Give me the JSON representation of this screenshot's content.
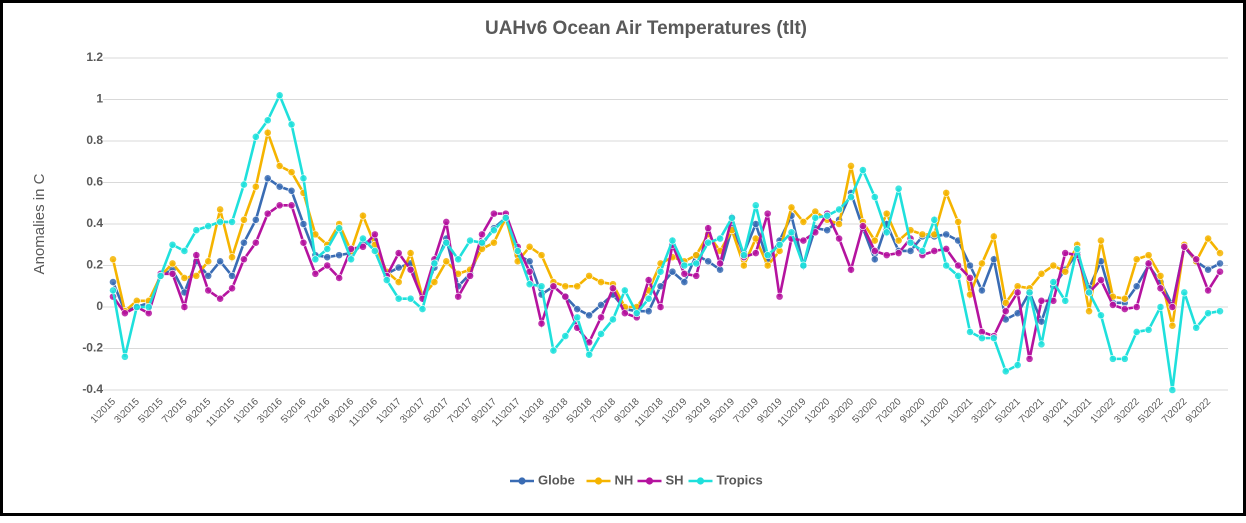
{
  "chart_data": {
    "type": "line",
    "title": "UAHv6 Ocean Air Temperatures (tlt)",
    "y_label": "Anomalies in C",
    "categories": [
      "1\\2015",
      null,
      "3\\2015",
      null,
      "5\\2015",
      null,
      "7\\2015",
      null,
      "9\\2015",
      null,
      "11\\2015",
      null,
      "1\\2016",
      null,
      "3\\2016",
      null,
      "5\\2016",
      null,
      "7\\2016",
      null,
      "9\\2016",
      null,
      "11\\2016",
      null,
      "1\\2017",
      null,
      "3\\2017",
      null,
      "5\\2017",
      null,
      "7\\2017",
      null,
      "9\\2017",
      null,
      "11\\2017",
      null,
      "1\\2018",
      null,
      "3\\2018",
      null,
      "5\\2018",
      null,
      "7\\2018",
      null,
      "9\\2018",
      null,
      "11\\2018",
      null,
      "1\\2019",
      null,
      "3\\2019",
      null,
      "5\\2019",
      null,
      "7\\2019",
      null,
      "9\\2019",
      null,
      "11\\2019",
      null,
      "1\\2020",
      null,
      "3\\2020",
      null,
      "5\\2020",
      null,
      "7\\2020",
      null,
      "9\\2020",
      null,
      "11\\2020",
      null,
      "1\\2021",
      null,
      "3\\2021",
      null,
      "5\\2021",
      null,
      "7\\2021",
      null,
      "9\\2021",
      null,
      "11\\2021",
      null,
      "1\\2022",
      null,
      "3\\2022",
      null,
      "5\\2022",
      null,
      "7\\2022",
      null,
      "9\\2022",
      null
    ],
    "series": [
      {
        "name": "Globe",
        "color": "#3a6cb4",
        "values": [
          0.12,
          -0.02,
          0.0,
          0.02,
          0.15,
          0.18,
          0.07,
          0.22,
          0.15,
          0.22,
          0.15,
          0.31,
          0.42,
          0.62,
          0.58,
          0.56,
          0.4,
          0.25,
          0.24,
          0.25,
          0.26,
          0.3,
          0.32,
          0.16,
          0.19,
          0.21,
          0.05,
          0.19,
          0.33,
          0.1,
          0.16,
          0.3,
          0.38,
          0.43,
          0.25,
          0.22,
          0.06,
          0.1,
          0.05,
          -0.01,
          -0.04,
          0.01,
          0.06,
          -0.01,
          -0.02,
          -0.02,
          0.1,
          0.17,
          0.12,
          0.25,
          0.22,
          0.18,
          0.38,
          0.26,
          0.4,
          0.22,
          0.32,
          0.44,
          0.2,
          0.38,
          0.37,
          0.42,
          0.55,
          0.38,
          0.23,
          0.4,
          0.27,
          0.27,
          0.34,
          0.34,
          0.35,
          0.32,
          0.2,
          0.08,
          0.23,
          -0.06,
          -0.03,
          0.07,
          -0.07,
          0.1,
          0.18,
          0.26,
          0.09,
          0.22,
          0.02,
          0.02,
          0.1,
          0.2,
          0.12,
          0.01,
          0.29,
          0.22,
          0.18,
          0.21
        ]
      },
      {
        "name": "NH",
        "color": "#f5b400",
        "values": [
          0.23,
          -0.02,
          0.03,
          0.03,
          0.15,
          0.21,
          0.14,
          0.15,
          0.22,
          0.47,
          0.24,
          0.42,
          0.58,
          0.84,
          0.68,
          0.65,
          0.55,
          0.35,
          0.3,
          0.4,
          0.27,
          0.44,
          0.3,
          0.17,
          0.12,
          0.26,
          0.05,
          0.12,
          0.22,
          0.16,
          0.18,
          0.28,
          0.31,
          0.43,
          0.22,
          0.29,
          0.25,
          0.12,
          0.1,
          0.1,
          0.15,
          0.12,
          0.11,
          0.0,
          0.0,
          0.08,
          0.21,
          0.24,
          0.22,
          0.25,
          0.35,
          0.27,
          0.37,
          0.2,
          0.33,
          0.2,
          0.27,
          0.48,
          0.41,
          0.46,
          0.42,
          0.4,
          0.68,
          0.41,
          0.32,
          0.45,
          0.32,
          0.37,
          0.35,
          0.35,
          0.55,
          0.41,
          0.06,
          0.21,
          0.34,
          0.02,
          0.1,
          0.09,
          0.16,
          0.2,
          0.17,
          0.3,
          -0.02,
          0.32,
          0.05,
          0.04,
          0.23,
          0.25,
          0.15,
          -0.09,
          0.3,
          0.22,
          0.33,
          0.26
        ]
      },
      {
        "name": "SH",
        "color": "#b5139f",
        "values": [
          0.05,
          -0.03,
          0.0,
          -0.03,
          0.16,
          0.16,
          0.0,
          0.25,
          0.08,
          0.04,
          0.09,
          0.23,
          0.31,
          0.45,
          0.49,
          0.49,
          0.31,
          0.16,
          0.2,
          0.14,
          0.28,
          0.29,
          0.35,
          0.15,
          0.26,
          0.18,
          0.04,
          0.23,
          0.41,
          0.05,
          0.15,
          0.35,
          0.45,
          0.45,
          0.29,
          0.17,
          -0.08,
          0.1,
          0.05,
          -0.1,
          -0.17,
          -0.05,
          0.09,
          -0.03,
          -0.05,
          0.13,
          0.0,
          0.3,
          0.16,
          0.15,
          0.38,
          0.21,
          0.43,
          0.24,
          0.26,
          0.45,
          0.05,
          0.33,
          0.32,
          0.36,
          0.45,
          0.33,
          0.18,
          0.39,
          0.27,
          0.25,
          0.26,
          0.33,
          0.25,
          0.27,
          0.28,
          0.2,
          0.14,
          -0.12,
          -0.14,
          -0.02,
          0.07,
          -0.25,
          0.03,
          0.03,
          0.26,
          0.25,
          0.07,
          0.13,
          0.01,
          -0.01,
          0.0,
          0.21,
          0.09,
          0.0,
          0.29,
          0.23,
          0.08,
          0.17
        ]
      },
      {
        "name": "Tropics",
        "color": "#1fe0dc",
        "values": [
          0.08,
          -0.24,
          0.0,
          0.0,
          0.15,
          0.3,
          0.27,
          0.37,
          0.39,
          0.41,
          0.41,
          0.59,
          0.82,
          0.9,
          1.02,
          0.88,
          0.62,
          0.23,
          0.28,
          0.38,
          0.23,
          0.33,
          0.27,
          0.13,
          0.04,
          0.04,
          -0.01,
          0.21,
          0.31,
          0.23,
          0.32,
          0.31,
          0.37,
          0.43,
          0.27,
          0.11,
          0.1,
          -0.21,
          -0.14,
          -0.05,
          -0.23,
          -0.13,
          -0.06,
          0.08,
          -0.03,
          0.04,
          0.17,
          0.32,
          0.2,
          0.21,
          0.31,
          0.33,
          0.43,
          0.25,
          0.49,
          0.25,
          0.3,
          0.36,
          0.2,
          0.43,
          0.44,
          0.47,
          0.53,
          0.66,
          0.53,
          0.36,
          0.57,
          0.31,
          0.27,
          0.42,
          0.2,
          0.15,
          -0.12,
          -0.15,
          -0.15,
          -0.31,
          -0.28,
          0.07,
          -0.18,
          0.12,
          0.03,
          0.28,
          0.07,
          -0.04,
          -0.25,
          -0.25,
          -0.12,
          -0.11,
          0.0,
          -0.4,
          0.07,
          -0.1,
          -0.03,
          -0.02
        ]
      }
    ],
    "ylim": [
      -0.4,
      1.2
    ],
    "yticks": [
      -0.4,
      -0.2,
      0,
      0.2,
      0.4,
      0.6,
      0.8,
      1,
      1.2
    ],
    "grid": true,
    "legend": "bottom"
  }
}
